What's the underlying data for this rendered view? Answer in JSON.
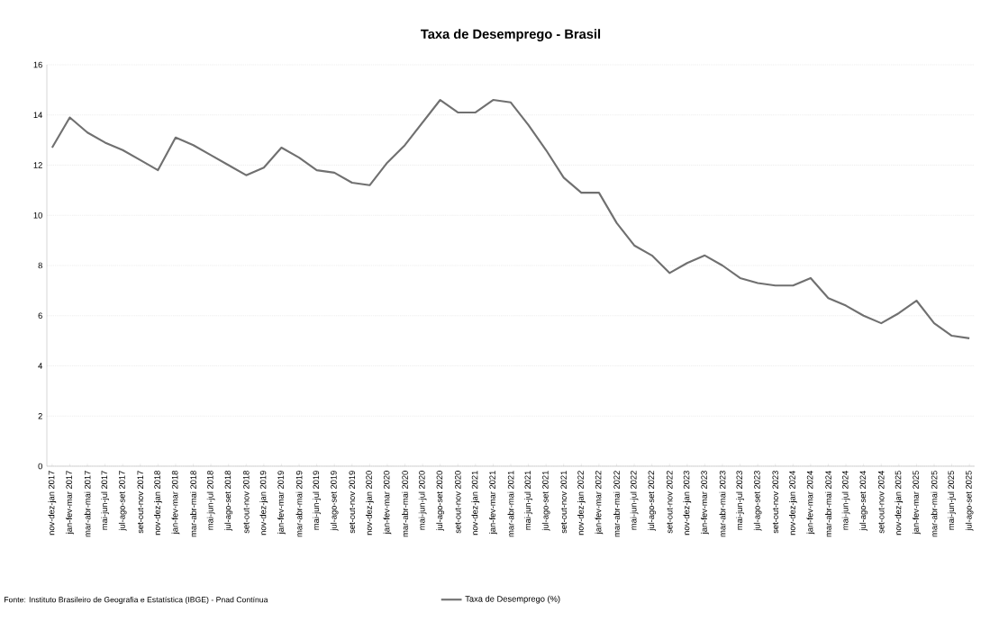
{
  "chart_data": {
    "type": "line",
    "title": "Taxa de Desemprego - Brasil",
    "categories": [
      "nov-dez-jan 2017",
      "jan-fev-mar 2017",
      "mar-abr-mai 2017",
      "mai-jun-jul 2017",
      "jul-ago-set 2017",
      "set-out-nov 2017",
      "nov-dez-jan 2018",
      "jan-fev-mar 2018",
      "mar-abr-mai 2018",
      "mai-jun-jul 2018",
      "jul-ago-set 2018",
      "set-out-nov 2018",
      "nov-dez-jan 2019",
      "jan-fev-mar 2019",
      "mar-abr-mai 2019",
      "mai-jun-jul 2019",
      "jul-ago-set 2019",
      "set-out-nov 2019",
      "nov-dez-jan 2020",
      "jan-fev-mar 2020",
      "mar-abr-mai 2020",
      "mai-jun-jul 2020",
      "jul-ago-set 2020",
      "set-out-nov 2020",
      "nov-dez-jan 2021",
      "jan-fev-mar 2021",
      "mar-abr-mai 2021",
      "mai-jun-jul 2021",
      "jul-ago-set 2021",
      "set-out-nov 2021",
      "nov-dez-jan 2022",
      "jan-fev-mar 2022",
      "mar-abr-mai 2022",
      "mai-jun-jul 2022",
      "jul-ago-set 2022",
      "set-out-nov 2022",
      "nov-dez-jan 2023",
      "jan-fev-mar 2023",
      "mar-abr-mai 2023",
      "mai-jun-jul 2023",
      "jul-ago-set 2023",
      "set-out-nov 2023",
      "nov-dez-jan 2024",
      "jan-fev-mar 2024",
      "mar-abr-mai 2024",
      "mai-jun-jul 2024",
      "jul-ago-set 2024",
      "set-out-nov 2024",
      "nov-dez-jan 2025",
      "jan-fev-mar 2025",
      "mar-abr-mai 2025",
      "mai-jun-jul 2025",
      "jul-ago-set 2025"
    ],
    "series": [
      {
        "name": "Taxa de Desemprego (%)",
        "color": "#707070",
        "values": [
          12.7,
          13.9,
          13.3,
          12.9,
          12.6,
          12.2,
          11.8,
          13.1,
          12.8,
          12.4,
          12.0,
          11.6,
          11.9,
          12.7,
          12.3,
          11.8,
          11.7,
          11.3,
          11.2,
          12.1,
          12.8,
          13.7,
          14.6,
          14.1,
          14.1,
          14.6,
          14.5,
          13.6,
          12.6,
          11.5,
          10.9,
          10.9,
          9.7,
          8.8,
          8.4,
          7.7,
          8.1,
          8.4,
          8.0,
          7.5,
          7.3,
          7.2,
          7.2,
          7.5,
          6.7,
          6.4,
          6.0,
          5.7,
          6.1,
          6.6,
          5.7,
          5.2,
          5.1
        ]
      }
    ],
    "ylim": [
      0,
      16
    ],
    "yticks": [
      0,
      2,
      4,
      6,
      8,
      10,
      12,
      14,
      16
    ],
    "grid": "y",
    "legend": "bottom",
    "marker": "none",
    "line_style": "solid",
    "annotations": [
      "Fonte: Instituto Brasileiro de Geografia e Estatística (IBGE) - Pnad Contínua"
    ]
  }
}
